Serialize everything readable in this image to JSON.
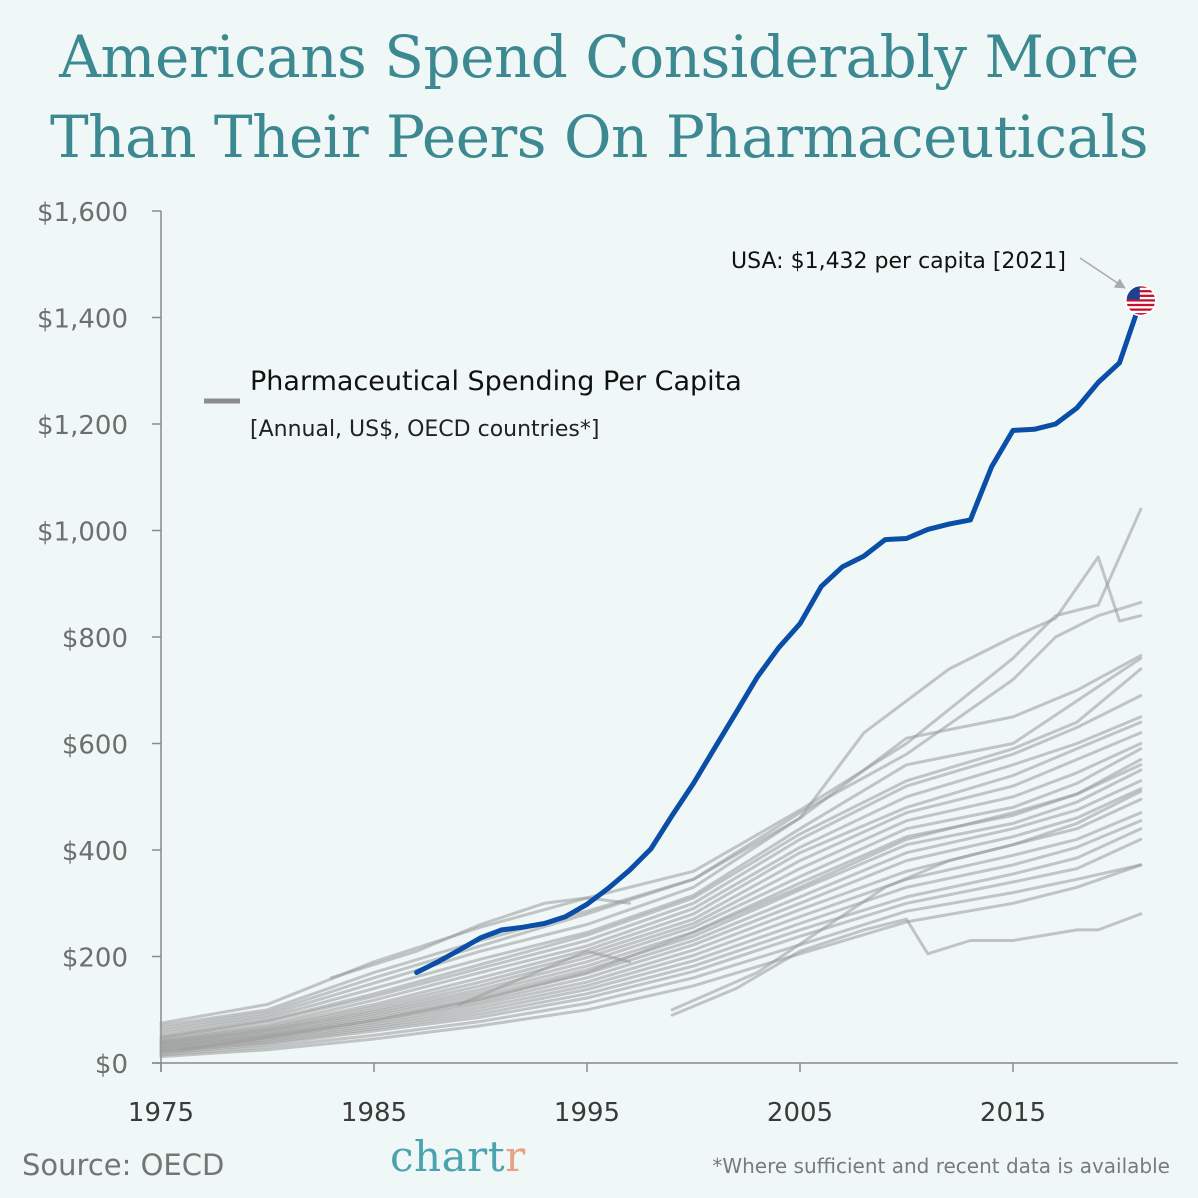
{
  "title": {
    "line1": "Americans Spend Considerably More",
    "line2": "Than Their Peers On Pharmaceuticals"
  },
  "legend": {
    "label": "Pharmaceutical Spending Per Capita",
    "sublabel": "[Annual, US$, OECD countries*]"
  },
  "annotation": {
    "text": "USA: $1,432 per capita [2021]",
    "flag_icon": "us-flag-icon"
  },
  "footer": {
    "source": "Source: OECD",
    "brand_main": "chart",
    "brand_accent": "r",
    "note": "*Where sufficient and recent data is available"
  },
  "colors": {
    "background": "#eff7f7",
    "title": "#3d8991",
    "usa_line": "#0b4ea8",
    "peer_lines": "#9a9a9a",
    "axis": "#8a8a8a",
    "legend_swatch": "#8c8c8c"
  },
  "chart_data": {
    "type": "line",
    "title": "Pharmaceutical Spending Per Capita",
    "xlabel": "",
    "ylabel": "",
    "xlim": [
      1975,
      2022
    ],
    "ylim": [
      0,
      1600
    ],
    "x_ticks": [
      1975,
      1985,
      1995,
      2005,
      2015
    ],
    "y_ticks": [
      0,
      200,
      400,
      600,
      800,
      1000,
      1200,
      1400,
      1600
    ],
    "y_tick_labels": [
      "$0",
      "$200",
      "$400",
      "$600",
      "$800",
      "$1,000",
      "$1,200",
      "$1,400",
      "$1,600"
    ],
    "highlight_series": {
      "name": "USA",
      "x": [
        1987,
        1988,
        1989,
        1990,
        1991,
        1992,
        1993,
        1994,
        1995,
        1996,
        1997,
        1998,
        1999,
        2000,
        2001,
        2002,
        2003,
        2004,
        2005,
        2006,
        2007,
        2008,
        2009,
        2010,
        2011,
        2012,
        2013,
        2014,
        2015,
        2016,
        2017,
        2018,
        2019,
        2020,
        2021
      ],
      "values": [
        170,
        190,
        212,
        235,
        250,
        255,
        262,
        275,
        298,
        328,
        362,
        402,
        465,
        525,
        592,
        658,
        725,
        780,
        825,
        895,
        932,
        952,
        983,
        985,
        1002,
        1012,
        1020,
        1120,
        1188,
        1190,
        1200,
        1230,
        1278,
        1315,
        1432
      ]
    },
    "series": [
      {
        "name": "peer-a",
        "x": [
          1975,
          1980,
          1985,
          1990,
          1995,
          2000,
          2005,
          2010,
          2015,
          2017,
          2019,
          2021
        ],
        "values": [
          75,
          110,
          190,
          255,
          310,
          360,
          475,
          600,
          760,
          840,
          860,
          1040
        ]
      },
      {
        "name": "peer-b",
        "x": [
          1975,
          1980,
          1985,
          1990,
          1995,
          2000,
          2005,
          2010,
          2015,
          2017,
          2019,
          2021
        ],
        "values": [
          70,
          100,
          170,
          230,
          285,
          345,
          470,
          580,
          720,
          800,
          840,
          865
        ]
      },
      {
        "name": "peer-c",
        "x": [
          1975,
          1980,
          1985,
          1990,
          1995,
          2000,
          2005,
          2008,
          2012,
          2015,
          2017,
          2019,
          2020,
          2021
        ],
        "values": [
          65,
          95,
          160,
          220,
          280,
          345,
          460,
          620,
          740,
          800,
          835,
          950,
          830,
          840
        ]
      },
      {
        "name": "peer-d",
        "x": [
          1975,
          1980,
          1985,
          1990,
          1995,
          2000,
          2005,
          2010,
          2015,
          2018,
          2021
        ],
        "values": [
          60,
          90,
          150,
          210,
          260,
          330,
          460,
          610,
          650,
          700,
          765
        ]
      },
      {
        "name": "peer-e",
        "x": [
          1975,
          1980,
          1985,
          1990,
          1995,
          2000,
          2005,
          2010,
          2015,
          2018,
          2021
        ],
        "values": [
          55,
          85,
          140,
          195,
          245,
          315,
          440,
          560,
          600,
          680,
          760
        ]
      },
      {
        "name": "peer-f",
        "x": [
          1975,
          1980,
          1985,
          1990,
          1995,
          2000,
          2005,
          2010,
          2015,
          2018,
          2021
        ],
        "values": [
          50,
          80,
          130,
          185,
          240,
          310,
          430,
          530,
          590,
          640,
          740
        ]
      },
      {
        "name": "peer-g",
        "x": [
          1975,
          1980,
          1985,
          1990,
          1995,
          2000,
          2005,
          2010,
          2015,
          2018,
          2021
        ],
        "values": [
          48,
          78,
          125,
          178,
          230,
          300,
          420,
          520,
          580,
          630,
          690
        ]
      },
      {
        "name": "peer-h",
        "x": [
          1975,
          1980,
          1985,
          1990,
          1995,
          2000,
          2005,
          2010,
          2015,
          2018,
          2021
        ],
        "values": [
          45,
          72,
          118,
          170,
          220,
          290,
          405,
          500,
          560,
          600,
          650
        ]
      },
      {
        "name": "peer-i",
        "x": [
          1975,
          1980,
          1985,
          1990,
          1995,
          2000,
          2005,
          2010,
          2015,
          2018,
          2021
        ],
        "values": [
          42,
          68,
          110,
          160,
          212,
          280,
          395,
          480,
          540,
          590,
          640
        ]
      },
      {
        "name": "peer-j",
        "x": [
          1975,
          1980,
          1985,
          1990,
          1995,
          2000,
          2005,
          2010,
          2015,
          2018,
          2021
        ],
        "values": [
          40,
          65,
          105,
          152,
          205,
          270,
          380,
          470,
          520,
          570,
          620
        ]
      },
      {
        "name": "peer-k",
        "x": [
          1975,
          1980,
          1985,
          1990,
          1995,
          2000,
          2005,
          2010,
          2015,
          2018,
          2021
        ],
        "values": [
          38,
          62,
          100,
          145,
          198,
          262,
          365,
          455,
          500,
          545,
          600
        ]
      },
      {
        "name": "peer-l",
        "x": [
          1975,
          1980,
          1985,
          1990,
          1995,
          2000,
          2005,
          2010,
          2015,
          2018,
          2021
        ],
        "values": [
          36,
          60,
          96,
          138,
          190,
          255,
          350,
          440,
          480,
          525,
          590
        ]
      },
      {
        "name": "peer-m",
        "x": [
          1975,
          1980,
          1985,
          1990,
          1995,
          2000,
          2005,
          2010,
          2015,
          2018,
          2021
        ],
        "values": [
          34,
          57,
          92,
          132,
          182,
          246,
          338,
          425,
          465,
          505,
          570
        ]
      },
      {
        "name": "peer-n",
        "x": [
          1975,
          1980,
          1985,
          1990,
          1995,
          2000,
          2005,
          2010,
          2015,
          2018,
          2021
        ],
        "values": [
          32,
          54,
          88,
          126,
          175,
          238,
          325,
          410,
          450,
          490,
          550
        ]
      },
      {
        "name": "peer-o",
        "x": [
          1975,
          1980,
          1985,
          1990,
          1995,
          2000,
          2005,
          2010,
          2015,
          2018,
          2021
        ],
        "values": [
          30,
          52,
          84,
          120,
          168,
          230,
          312,
          395,
          440,
          475,
          530
        ]
      },
      {
        "name": "peer-p",
        "x": [
          1975,
          1980,
          1985,
          1990,
          1995,
          2000,
          2005,
          2010,
          2015,
          2018,
          2021
        ],
        "values": [
          28,
          50,
          80,
          115,
          160,
          222,
          300,
          380,
          425,
          460,
          515
        ]
      },
      {
        "name": "peer-q",
        "x": [
          1975,
          1980,
          1985,
          1990,
          1995,
          2000,
          2005,
          2010,
          2015,
          2018,
          2021
        ],
        "values": [
          26,
          47,
          76,
          110,
          152,
          212,
          288,
          360,
          410,
          440,
          495
        ]
      },
      {
        "name": "peer-r",
        "x": [
          1975,
          1980,
          1985,
          1990,
          1995,
          2000,
          2005,
          2010,
          2015,
          2018,
          2021
        ],
        "values": [
          24,
          44,
          72,
          104,
          145,
          202,
          275,
          345,
          390,
          420,
          470
        ]
      },
      {
        "name": "peer-s",
        "x": [
          1975,
          1980,
          1985,
          1990,
          1995,
          2000,
          2005,
          2010,
          2015,
          2018,
          2021
        ],
        "values": [
          22,
          41,
          68,
          98,
          138,
          192,
          262,
          330,
          372,
          405,
          455
        ]
      },
      {
        "name": "peer-t",
        "x": [
          1975,
          1980,
          1985,
          1990,
          1995,
          2000,
          2005,
          2010,
          2015,
          2018,
          2021
        ],
        "values": [
          20,
          38,
          64,
          92,
          130,
          182,
          250,
          312,
          355,
          385,
          440
        ]
      },
      {
        "name": "peer-u",
        "x": [
          1975,
          1980,
          1985,
          1990,
          1995,
          2000,
          2005,
          2010,
          2015,
          2018,
          2021
        ],
        "values": [
          18,
          35,
          60,
          86,
          122,
          172,
          238,
          300,
          340,
          365,
          420
        ]
      },
      {
        "name": "peer-v",
        "x": [
          1975,
          1980,
          1985,
          1990,
          1995,
          2000,
          2005,
          2010,
          2015,
          2018,
          2021
        ],
        "values": [
          15,
          30,
          52,
          78,
          112,
          160,
          222,
          285,
          320,
          345,
          372
        ]
      },
      {
        "name": "peer-w",
        "x": [
          1975,
          1980,
          1985,
          1990,
          1995,
          2000,
          2005,
          2010,
          2015,
          2018,
          2021
        ],
        "values": [
          12,
          25,
          45,
          70,
          100,
          145,
          205,
          265,
          300,
          330,
          372
        ]
      },
      {
        "name": "peer-x",
        "x": [
          1976,
          1980,
          1985,
          1990,
          1995,
          2000,
          2005,
          2010,
          2015,
          2018,
          2021
        ],
        "values": [
          25,
          48,
          80,
          120,
          170,
          245,
          330,
          420,
          470,
          505,
          560
        ]
      },
      {
        "name": "peer-y",
        "x": [
          1983,
          1987,
          1990,
          1993,
          1995,
          1997
        ],
        "values": [
          160,
          210,
          260,
          300,
          310,
          300
        ]
      },
      {
        "name": "peer-z",
        "x": [
          1989,
          1992,
          1995,
          1997
        ],
        "values": [
          110,
          160,
          210,
          190
        ]
      },
      {
        "name": "peer-aa",
        "x": [
          1999,
          2002,
          2005,
          2008,
          2010,
          2011,
          2013,
          2015,
          2018,
          2019,
          2021
        ],
        "values": [
          90,
          140,
          210,
          250,
          270,
          205,
          230,
          230,
          250,
          250,
          280
        ]
      },
      {
        "name": "peer-ab",
        "x": [
          1999,
          2003,
          2006,
          2009,
          2012,
          2015,
          2018,
          2021
        ],
        "values": [
          100,
          170,
          250,
          330,
          380,
          410,
          450,
          510
        ]
      }
    ]
  }
}
